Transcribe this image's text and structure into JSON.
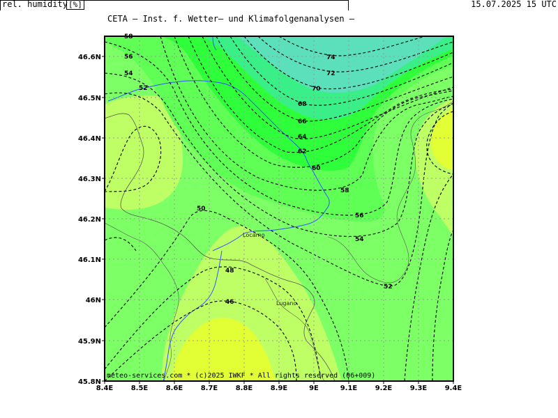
{
  "header": {
    "title": "CETA — Inst. f. Wetter— und Klimafolgenanalysen —",
    "parameter": "rel. humidity",
    "unit": "[%]",
    "datetime": "15.07.2025 15 UTC"
  },
  "footer": {
    "copyright": "meteo-services.com * (c)2025 IWKF * All rights reserved (06+009)"
  },
  "axes": {
    "x_ticks": [
      "8.4E",
      "8.5E",
      "8.6E",
      "8.7E",
      "8.8E",
      "8.9E",
      "9E",
      "9.1E",
      "9.2E",
      "9.3E",
      "9.4E"
    ],
    "y_ticks": [
      "46.6N",
      "46.5N",
      "46.4N",
      "46.3N",
      "46.2N",
      "46.1N",
      "46N",
      "45.9N",
      "45.8N"
    ]
  },
  "places": {
    "locarno": "Locarno",
    "lugano": "Lugano"
  },
  "contour_labels": [
    "74",
    "72",
    "70",
    "68",
    "66",
    "64",
    "62",
    "60",
    "58",
    "56",
    "54",
    "52",
    "50",
    "48",
    "46",
    "56",
    "54",
    "52",
    "58"
  ],
  "colors": {
    "yellow": "#e2ff36",
    "light_green": "#bfff66",
    "green": "#7dff66",
    "bright_green": "#2eff3a",
    "teal": "#5ce0bb",
    "river": "#3355ff"
  }
}
